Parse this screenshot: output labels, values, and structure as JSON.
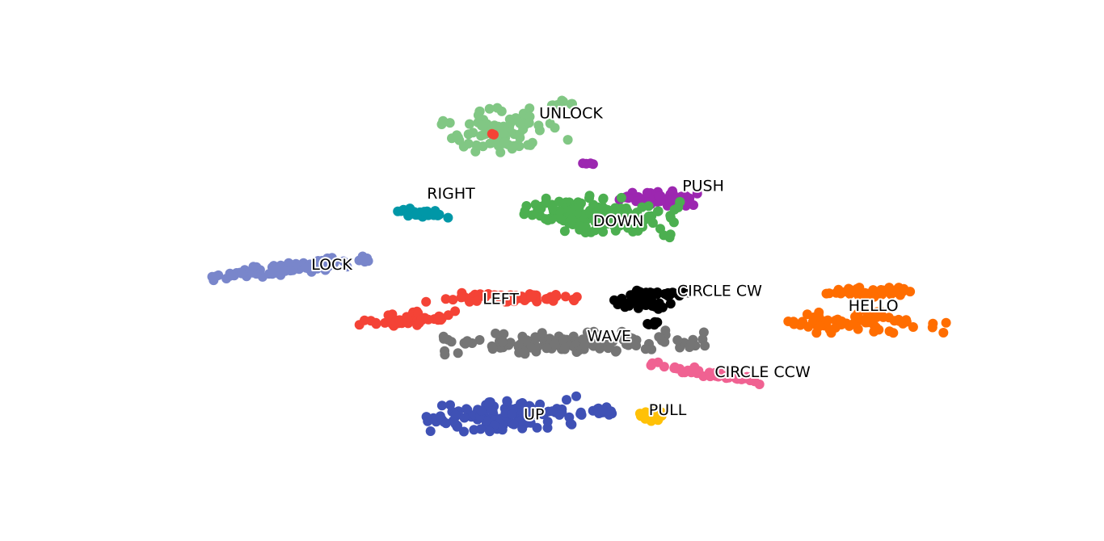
{
  "chart_data": {
    "type": "scatter",
    "title": "",
    "xlabel": "",
    "ylabel": "",
    "axes_visible": false,
    "grid": false,
    "legend": "none",
    "xlim": [
      0,
      100
    ],
    "ylim": [
      0,
      100
    ],
    "series": [
      {
        "name": "UNLOCK",
        "color": "#81C784",
        "label_pos": [
          46.9,
          88.3
        ],
        "clusters": [
          {
            "cx": 42.5,
            "cy": 84.1,
            "rx": 5.9,
            "ry": 5.4,
            "angle": 28,
            "n": 85
          },
          {
            "cx": 49.5,
            "cy": 90.6,
            "rx": 1.6,
            "ry": 0.9,
            "angle": 20,
            "n": 10
          }
        ],
        "extra": [
          [
            58.9,
            67.1
          ]
        ]
      },
      {
        "name": "PUSH",
        "color": "#9C27B0",
        "label_pos": [
          63.6,
          71.0
        ],
        "clusters": [
          {
            "cx": 60.8,
            "cy": 68.4,
            "rx": 1.8,
            "ry": 4.4,
            "angle": 78,
            "n": 55
          }
        ],
        "extra": [
          [
            52.0,
            76.5
          ],
          [
            52.4,
            76.4
          ],
          [
            52.9,
            76.5
          ],
          [
            53.2,
            76.3
          ]
        ]
      },
      {
        "name": "DOWN",
        "color": "#4CAF50",
        "label_pos": [
          53.2,
          62.6
        ],
        "clusters": [
          {
            "cx": 54.0,
            "cy": 64.2,
            "rx": 8.8,
            "ry": 4.4,
            "angle": -8,
            "n": 150
          }
        ],
        "extra": []
      },
      {
        "name": "RIGHT",
        "color": "#0097A7",
        "label_pos": [
          33.8,
          69.1
        ],
        "clusters": [
          {
            "cx": 33.2,
            "cy": 64.6,
            "rx": 0.9,
            "ry": 3.2,
            "angle": 80,
            "n": 30
          }
        ],
        "extra": []
      },
      {
        "name": "LOCK",
        "color": "#7986CB",
        "label_pos": [
          20.3,
          52.2
        ],
        "clusters": [
          {
            "cx": 17.8,
            "cy": 51.5,
            "rx": 9.3,
            "ry": 1.4,
            "angle": 12,
            "n": 75
          }
        ],
        "extra": []
      },
      {
        "name": "LEFT",
        "color": "#F44336",
        "label_pos": [
          40.3,
          44.0
        ],
        "clusters": [
          {
            "cx": 31.5,
            "cy": 39.3,
            "rx": 5.9,
            "ry": 1.6,
            "angle": 14,
            "n": 55
          },
          {
            "cx": 42.5,
            "cy": 44.6,
            "rx": 8.8,
            "ry": 1.1,
            "angle": 0,
            "n": 60
          }
        ],
        "extra": [
          [
            41.4,
            83.5
          ],
          [
            41.6,
            83.3
          ]
        ]
      },
      {
        "name": "CIRCLE CW",
        "color": "#000000",
        "label_pos": [
          63.0,
          46.0
        ],
        "clusters": [
          {
            "cx": 59.0,
            "cy": 43.0,
            "rx": 1.1,
            "ry": 3.7,
            "angle": 80,
            "n": 28
          },
          {
            "cx": 61.5,
            "cy": 45.5,
            "rx": 4.0,
            "ry": 0.9,
            "angle": 0,
            "n": 35
          },
          {
            "cx": 60.2,
            "cy": 38.5,
            "rx": 1.1,
            "ry": 0.6,
            "angle": 0,
            "n": 6
          }
        ],
        "extra": []
      },
      {
        "name": "HELLO",
        "color": "#FF6D00",
        "label_pos": [
          83.0,
          42.4
        ],
        "clusters": [
          {
            "cx": 84.6,
            "cy": 45.8,
            "rx": 5.6,
            "ry": 1.1,
            "angle": 0,
            "n": 40
          },
          {
            "cx": 84.4,
            "cy": 38.6,
            "rx": 10.0,
            "ry": 2.5,
            "angle": 0,
            "n": 70
          }
        ],
        "extra": []
      },
      {
        "name": "WAVE",
        "color": "#757575",
        "label_pos": [
          52.5,
          35.2
        ],
        "clusters": [
          {
            "cx": 51.0,
            "cy": 33.8,
            "rx": 15.2,
            "ry": 2.5,
            "angle": 2,
            "n": 140
          }
        ],
        "extra": []
      },
      {
        "name": "CIRCLE CCW",
        "color": "#F06292",
        "label_pos": [
          67.4,
          26.6
        ],
        "clusters": [
          {
            "cx": 66.5,
            "cy": 26.5,
            "rx": 6.8,
            "ry": 0.9,
            "angle": -18,
            "n": 45
          }
        ],
        "extra": []
      },
      {
        "name": "UP",
        "color": "#3F51B5",
        "label_pos": [
          45.1,
          16.5
        ],
        "clusters": [
          {
            "cx": 42.8,
            "cy": 16.3,
            "rx": 9.0,
            "ry": 3.5,
            "angle": 8,
            "n": 115
          },
          {
            "cx": 54.5,
            "cy": 17.5,
            "rx": 1.5,
            "ry": 1.0,
            "angle": 0,
            "n": 20
          }
        ],
        "extra": []
      },
      {
        "name": "PULL",
        "color": "#FFC107",
        "label_pos": [
          59.7,
          17.6
        ],
        "clusters": [
          {
            "cx": 59.8,
            "cy": 16.6,
            "rx": 1.4,
            "ry": 1.5,
            "angle": 0,
            "n": 30
          }
        ],
        "extra": []
      }
    ]
  }
}
